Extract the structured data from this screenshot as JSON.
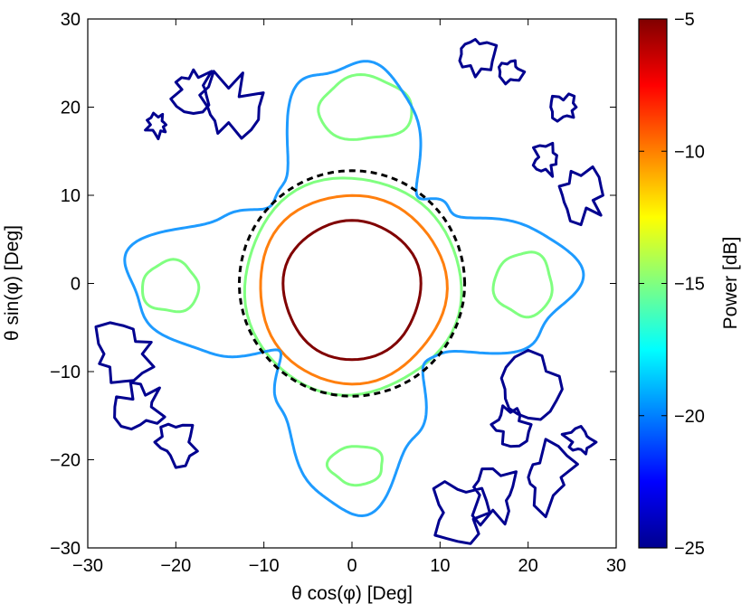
{
  "chart_data": {
    "type": "contour",
    "xlabel": "θ cos(φ) [Deg]",
    "ylabel": "θ sin(φ) [Deg]",
    "xlim": [
      -30,
      30
    ],
    "ylim": [
      -30,
      30
    ],
    "x_ticks": [
      "−30",
      "−20",
      "−10",
      "0",
      "10",
      "20",
      "30"
    ],
    "y_ticks": [
      "−30",
      "−20",
      "−10",
      "0",
      "10",
      "20",
      "30"
    ],
    "colorbar": {
      "label": "Power [dB]",
      "range": [
        -25,
        -5
      ],
      "ticks": [
        "−5",
        "−10",
        "−15",
        "−20",
        "−25"
      ]
    },
    "grid": false,
    "contours": [
      {
        "level": -5,
        "color": "#800000",
        "style": "solid",
        "shape": "main-lobe",
        "center": [
          0,
          -0.7
        ],
        "radius_x": 7.8,
        "radius_y": 7.9
      },
      {
        "level": -8,
        "color": "#ff7f0e",
        "style": "solid",
        "shape": "main-lobe",
        "center": [
          0,
          -0.6
        ],
        "radius_x": 10.6,
        "radius_y": 10.7
      },
      {
        "level": -15,
        "color": "#80ff80",
        "style": "solid",
        "shape": "main-lobe",
        "center": [
          0,
          -0.3
        ],
        "radius_x": 12.3,
        "radius_y": 12.3
      },
      {
        "level": -15,
        "color": "#80ff80",
        "style": "solid",
        "shape": "sidelobe",
        "center": [
          1.5,
          19.8
        ],
        "radius_x": 5.3,
        "radius_y": 3.6
      },
      {
        "level": -15,
        "color": "#80ff80",
        "style": "solid",
        "shape": "sidelobe",
        "center": [
          -20.6,
          -0.4
        ],
        "radius_x": 3.2,
        "radius_y": 2.9
      },
      {
        "level": -15,
        "color": "#80ff80",
        "style": "solid",
        "shape": "sidelobe",
        "center": [
          19.5,
          -0.1
        ],
        "radius_x": 3.3,
        "radius_y": 3.6
      },
      {
        "level": -15,
        "color": "#80ff80",
        "style": "solid",
        "shape": "sidelobe",
        "center": [
          0.5,
          -20.6
        ],
        "radius_x": 3.1,
        "radius_y": 2.2
      },
      {
        "level": -20,
        "color": "#1e9bff",
        "style": "solid",
        "shape": "cross-pattern"
      },
      {
        "level": -25,
        "color": "#00008f",
        "style": "solid",
        "shape": "noise-islands"
      },
      {
        "level": null,
        "color": "#000000",
        "style": "dashed",
        "shape": "circle",
        "center": [
          0,
          0
        ],
        "radius_x": 12.8,
        "radius_y": 12.8
      }
    ]
  }
}
